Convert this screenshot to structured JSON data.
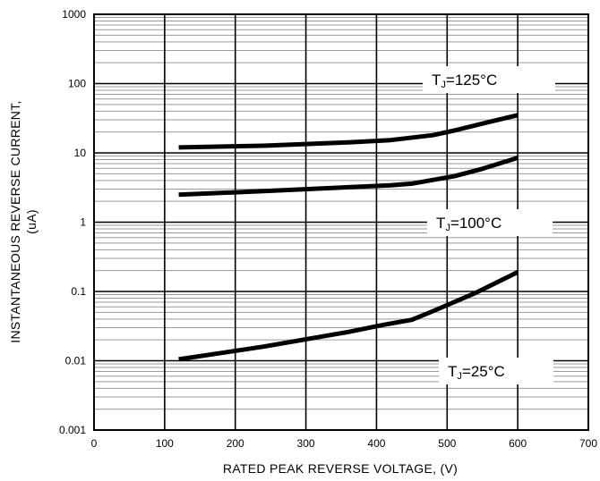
{
  "chart_data": {
    "type": "line",
    "title": "",
    "xlabel": "RATED PEAK REVERSE VOLTAGE, (V)",
    "ylabel_line1": "INSTANTANEOUS REVERSE CURRENT,",
    "ylabel_line2": "(uA)",
    "xlim": [
      0,
      700
    ],
    "ylim": [
      0.001,
      1000
    ],
    "yscale": "log",
    "grid": true,
    "x_ticks": [
      "0",
      "100",
      "200",
      "300",
      "400",
      "500",
      "600",
      "700"
    ],
    "y_ticks": [
      "0.001",
      "0.01",
      "0.1",
      "1",
      "10",
      "100",
      "1000"
    ],
    "series": [
      {
        "label_main": "T",
        "label_sub": "J",
        "label_rest": "=125°C",
        "x": [
          120,
          240,
          360,
          420,
          480,
          510,
          560,
          600
        ],
        "y": [
          12,
          12.7,
          14.2,
          15.3,
          18,
          21,
          28,
          35
        ]
      },
      {
        "label_main": "T",
        "label_sub": "J",
        "label_rest": "=100°C",
        "x": [
          120,
          240,
          360,
          420,
          450,
          510,
          550,
          600
        ],
        "y": [
          2.5,
          2.8,
          3.2,
          3.4,
          3.6,
          4.6,
          5.9,
          8.5
        ]
      },
      {
        "label_main": "T",
        "label_sub": "J",
        "label_rest": "=25°C",
        "x": [
          120,
          240,
          360,
          410,
          450,
          480,
          540,
          600
        ],
        "y": [
          0.0105,
          0.016,
          0.026,
          0.033,
          0.039,
          0.052,
          0.095,
          0.19
        ]
      }
    ]
  }
}
